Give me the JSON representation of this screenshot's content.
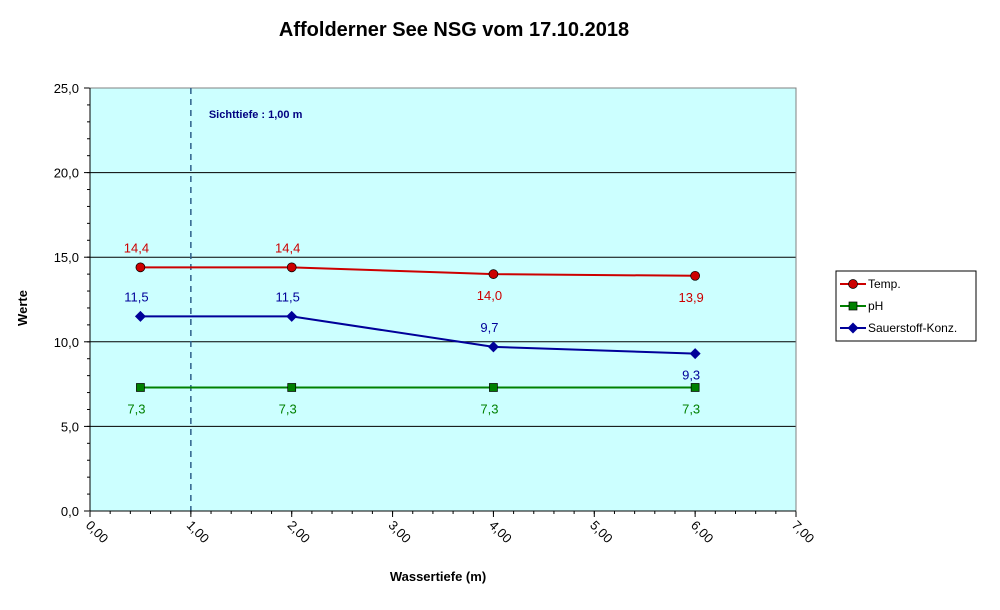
{
  "chart_data": {
    "type": "line",
    "title": "Affolderner See NSG vom 17.10.2018",
    "xlabel": "Wassertiefe  (m)",
    "ylabel": "Werte",
    "xlim": [
      0,
      7
    ],
    "ylim": [
      0,
      25
    ],
    "x_ticks": [
      "0,00",
      "1,00",
      "2,00",
      "3,00",
      "4,00",
      "5,00",
      "6,00",
      "7,00"
    ],
    "y_ticks": [
      "0,0",
      "5,0",
      "10,0",
      "15,0",
      "20,0",
      "25,0"
    ],
    "x": [
      0.5,
      2,
      4,
      6
    ],
    "series": [
      {
        "name": "Temp.",
        "values": [
          14.4,
          14.4,
          14.0,
          13.9
        ],
        "labels": [
          "14,4",
          "14,4",
          "14,0",
          "13,9"
        ],
        "color": "#cc0000",
        "marker": "circle",
        "label_pos": [
          "above",
          "above",
          "below",
          "below"
        ]
      },
      {
        "name": "pH",
        "values": [
          7.3,
          7.3,
          7.3,
          7.3
        ],
        "labels": [
          "7,3",
          "7,3",
          "7,3",
          "7,3"
        ],
        "color": "#008000",
        "marker": "square",
        "label_pos": [
          "below",
          "below",
          "below",
          "below"
        ]
      },
      {
        "name": "Sauerstoff-Konz.",
        "values": [
          11.5,
          11.5,
          9.7,
          9.3
        ],
        "labels": [
          "11,5",
          "11,5",
          "9,7",
          "9,3"
        ],
        "color": "#000099",
        "marker": "diamond",
        "label_pos": [
          "above",
          "above",
          "above",
          "below"
        ]
      }
    ],
    "annotation": {
      "text": "Sichttiefe : 1,00 m",
      "x": 1.0
    },
    "plot_background": "#ccffff",
    "grid": "horizontal",
    "legend_position": "right"
  }
}
